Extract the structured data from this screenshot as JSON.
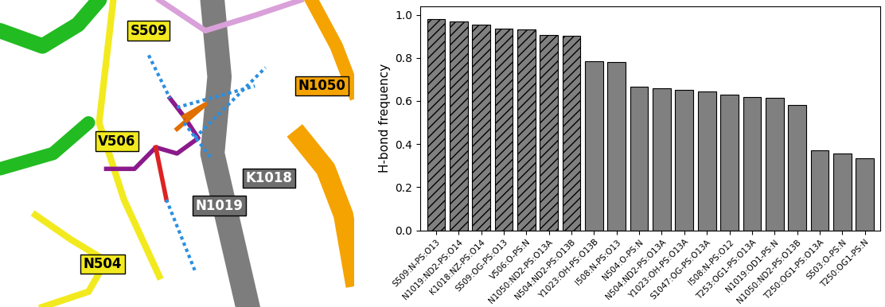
{
  "chart_data": {
    "type": "bar",
    "y_label": "H-bond frequency",
    "categories": [
      "S509:N-PS:O13",
      "N1019:ND2-PS:O14",
      "K1018:NZ-PS:O14",
      "S509:OG-PS:O13",
      "V506:O-PS:N",
      "N1050:ND2-PS:O13A",
      "N504:ND2-PS:O13B",
      "Y1023:OH-PS:O13B",
      "I508:N-PS:O13",
      "N504:O-PS:N",
      "N504:ND2-PS:O13A",
      "Y1023:OH-PS:O13A",
      "S1047:OG-PS:O13A",
      "I508:N-PS:O12",
      "T253:OG1-PS:O13A",
      "N1019:OD1-PS:N",
      "N1050:ND2-PS:O13B",
      "T250:OG1-PS:O13A",
      "S503:O-PS:N",
      "T250:OG1-PS:N"
    ],
    "values": [
      0.98,
      0.97,
      0.955,
      0.935,
      0.932,
      0.905,
      0.903,
      0.785,
      0.78,
      0.668,
      0.66,
      0.65,
      0.645,
      0.628,
      0.617,
      0.613,
      0.58,
      0.372,
      0.357,
      0.333
    ],
    "color": "#808080",
    "ylim": [
      0,
      1.04
    ],
    "yticks": [
      {
        "value": 0,
        "label": "0.0"
      },
      {
        "value": 0.2,
        "label": "0.2"
      },
      {
        "value": 0.4,
        "label": "0.4"
      },
      {
        "value": 0.6,
        "label": "0.6"
      },
      {
        "value": 0.8,
        "label": "0.8"
      },
      {
        "value": 1,
        "label": "1.0"
      }
    ],
    "grid": false
  },
  "structure_labels": [
    {
      "label": "S509",
      "color": "#f2ea1f"
    },
    {
      "label": "V506",
      "color": "#f2ea1f"
    },
    {
      "label": "N504",
      "color": "#f2ea1f"
    },
    {
      "label": "N1050",
      "color": "#f5a300"
    },
    {
      "label": "K1018",
      "color": "#6e6e6e"
    },
    {
      "label": "N1019",
      "color": "#6e6e6e"
    }
  ]
}
